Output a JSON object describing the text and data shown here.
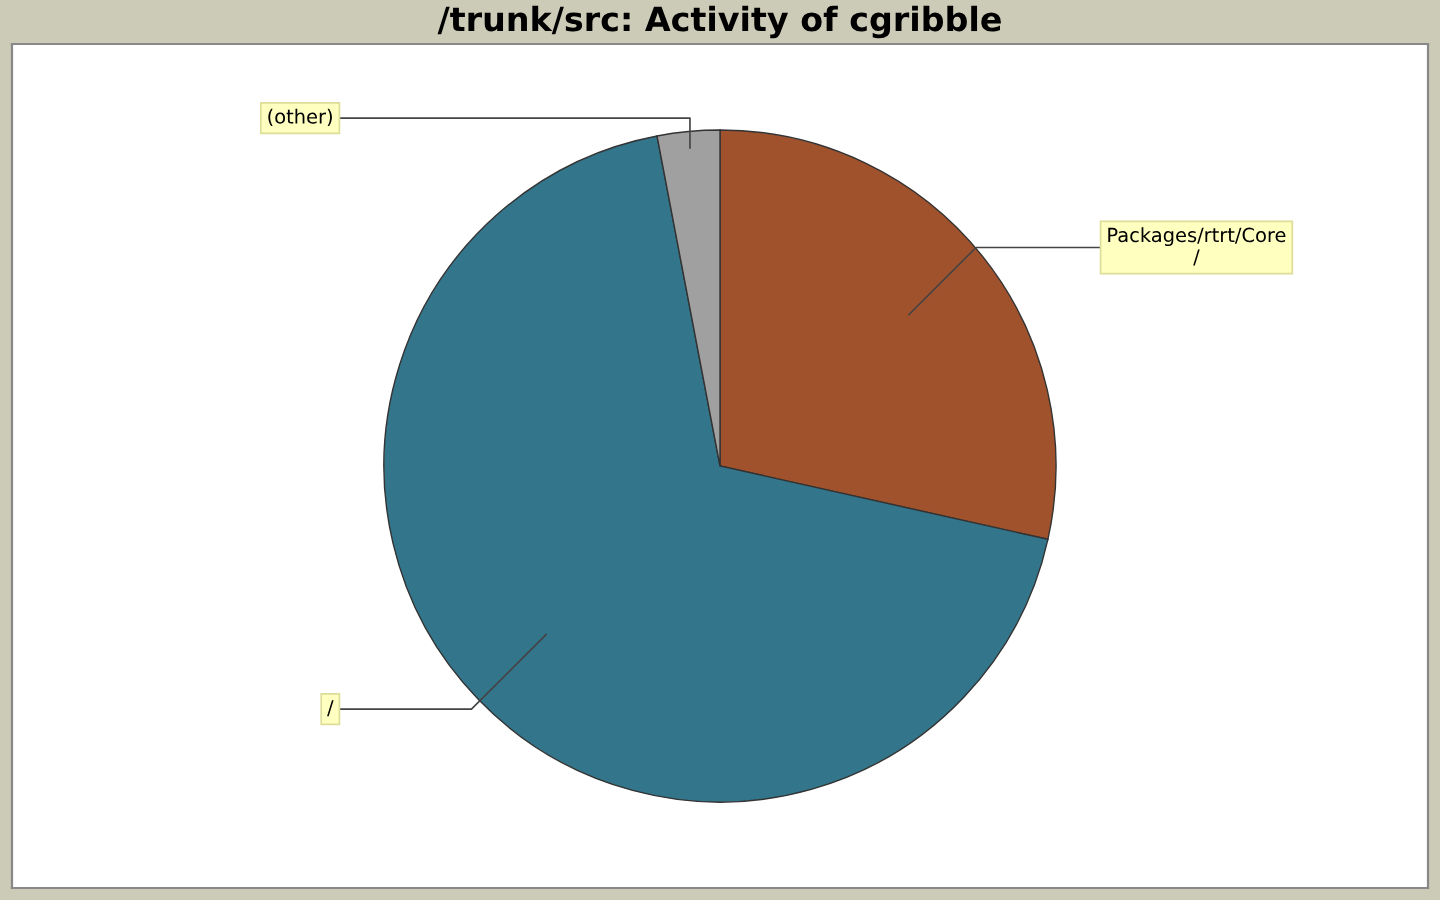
{
  "chart_data": {
    "type": "pie",
    "title": "/trunk/src: Activity of cgribble",
    "categories": [
      "Packages/rtrt/Core\n/",
      "/",
      "(other)"
    ],
    "values": [
      28.5,
      68.5,
      3
    ],
    "colors": [
      "#a0522d",
      "#33758b",
      "#a0a0a0"
    ],
    "legend": false
  }
}
